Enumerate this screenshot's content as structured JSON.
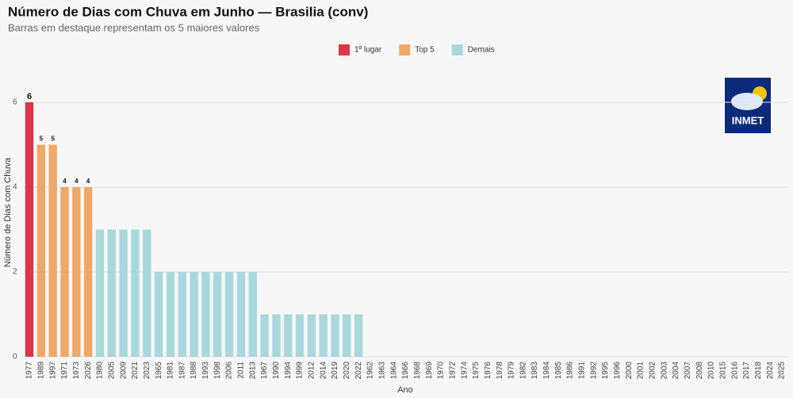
{
  "chart_data": {
    "type": "bar",
    "title": "Número de Dias com Chuva em Junho — Brasilia (conv)",
    "subtitle": "Barras em destaque representam os 5 maiores valores",
    "x_label": "Ano",
    "y_label": "Número de Dias com Chuva",
    "categories": [
      "1977",
      "1989",
      "1997",
      "1971",
      "1973",
      "2026",
      "1980",
      "2005",
      "2009",
      "2021",
      "2023",
      "1965",
      "1981",
      "1987",
      "1988",
      "1993",
      "1998",
      "2006",
      "2011",
      "2013",
      "1967",
      "1990",
      "1994",
      "1999",
      "2012",
      "2014",
      "2019",
      "2020",
      "2022",
      "1962",
      "1963",
      "1964",
      "1966",
      "1968",
      "1969",
      "1970",
      "1972",
      "1974",
      "1975",
      "1976",
      "1978",
      "1979",
      "1982",
      "1983",
      "1984",
      "1985",
      "1986",
      "1991",
      "1992",
      "1995",
      "1996",
      "2000",
      "2001",
      "2002",
      "2003",
      "2004",
      "2007",
      "2008",
      "2010",
      "2015",
      "2016",
      "2017",
      "2018",
      "2024",
      "2025"
    ],
    "series": [
      {
        "name": "1º lugar",
        "color": "#dc3545",
        "data_labels": true,
        "values": [
          6,
          null,
          null,
          null,
          null,
          null,
          null,
          null,
          null,
          null,
          null,
          null,
          null,
          null,
          null,
          null,
          null,
          null,
          null,
          null,
          null,
          null,
          null,
          null,
          null,
          null,
          null,
          null,
          null,
          null,
          null,
          null,
          null,
          null,
          null,
          null,
          null,
          null,
          null,
          null,
          null,
          null,
          null,
          null,
          null,
          null,
          null,
          null,
          null,
          null,
          null,
          null,
          null,
          null,
          null,
          null,
          null,
          null,
          null,
          null,
          null,
          null,
          null,
          null,
          null
        ]
      },
      {
        "name": "Top 5",
        "color": "#f0a868",
        "data_labels": true,
        "values": [
          null,
          5,
          5,
          4,
          4,
          4,
          null,
          null,
          null,
          null,
          null,
          null,
          null,
          null,
          null,
          null,
          null,
          null,
          null,
          null,
          null,
          null,
          null,
          null,
          null,
          null,
          null,
          null,
          null,
          null,
          null,
          null,
          null,
          null,
          null,
          null,
          null,
          null,
          null,
          null,
          null,
          null,
          null,
          null,
          null,
          null,
          null,
          null,
          null,
          null,
          null,
          null,
          null,
          null,
          null,
          null,
          null,
          null,
          null,
          null,
          null,
          null,
          null,
          null,
          null
        ]
      },
      {
        "name": "Demais",
        "color": "#a8d8dc",
        "data_labels": false,
        "values": [
          null,
          null,
          null,
          null,
          null,
          null,
          3,
          3,
          3,
          3,
          3,
          2,
          2,
          2,
          2,
          2,
          2,
          2,
          2,
          2,
          1,
          1,
          1,
          1,
          1,
          1,
          1,
          1,
          1,
          0,
          0,
          0,
          0,
          0,
          0,
          0,
          0,
          0,
          0,
          0,
          0,
          0,
          0,
          0,
          0,
          0,
          0,
          0,
          0,
          0,
          0,
          0,
          0,
          0,
          0,
          0,
          0,
          0,
          0,
          0,
          0,
          0,
          0,
          0,
          0
        ]
      }
    ],
    "ylim": [
      0,
      6.3
    ],
    "yticks": [
      0,
      2,
      4,
      6
    ],
    "grid": true,
    "legend": "top"
  },
  "logo": {
    "text": "INMET"
  }
}
